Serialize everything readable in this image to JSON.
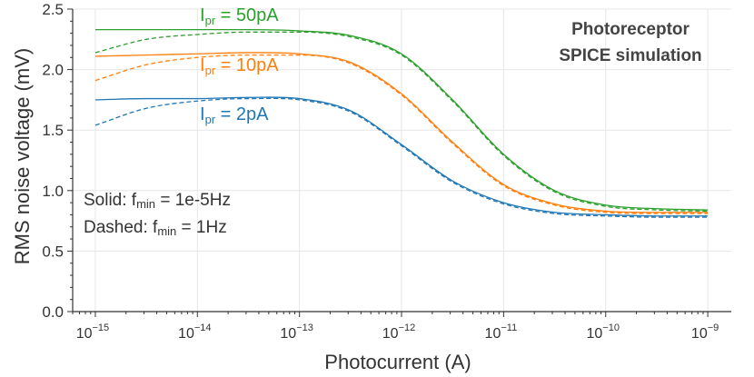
{
  "chart_data": {
    "type": "line",
    "title": "",
    "xlabel": "Photocurrent (A)",
    "ylabel": "RMS noise voltage (mV)",
    "xscale": "log",
    "xlim": [
      6e-16,
      1.7e-09
    ],
    "ylim": [
      0.0,
      2.5
    ],
    "grid": true,
    "x_ticks": [
      {
        "base": "10",
        "exp": "−15",
        "value": 1e-15
      },
      {
        "base": "10",
        "exp": "−14",
        "value": 1e-14
      },
      {
        "base": "10",
        "exp": "−13",
        "value": 1e-13
      },
      {
        "base": "10",
        "exp": "−12",
        "value": 1e-12
      },
      {
        "base": "10",
        "exp": "−11",
        "value": 1e-11
      },
      {
        "base": "10",
        "exp": "−10",
        "value": 1e-10
      },
      {
        "base": "10",
        "exp": "−9",
        "value": 1e-09
      }
    ],
    "y_ticks": [
      "0.0",
      "0.5",
      "1.0",
      "1.5",
      "2.0",
      "2.5"
    ],
    "x": [
      1e-15,
      3.16e-15,
      1e-14,
      3.16e-14,
      1e-13,
      3.16e-13,
      1e-12,
      3.16e-12,
      1e-11,
      3.16e-11,
      1e-10,
      3.16e-10,
      1e-09
    ],
    "series": [
      {
        "name": "Ipr = 50pA, fmin = 1e-5Hz",
        "color": "#2ca02c",
        "style": "solid",
        "values": [
          2.33,
          2.33,
          2.33,
          2.33,
          2.32,
          2.28,
          2.13,
          1.75,
          1.3,
          1.0,
          0.88,
          0.85,
          0.84
        ]
      },
      {
        "name": "Ipr = 50pA, fmin = 1Hz",
        "color": "#2ca02c",
        "style": "dashed",
        "values": [
          2.14,
          2.25,
          2.29,
          2.31,
          2.31,
          2.27,
          2.12,
          1.74,
          1.29,
          0.99,
          0.87,
          0.84,
          0.83
        ]
      },
      {
        "name": "Ipr = 10pA, fmin = 1e-5Hz",
        "color": "#ff7f0e",
        "style": "solid",
        "values": [
          2.11,
          2.12,
          2.13,
          2.14,
          2.13,
          2.06,
          1.8,
          1.4,
          1.05,
          0.89,
          0.83,
          0.82,
          0.82
        ]
      },
      {
        "name": "Ipr = 10pA, fmin = 1Hz",
        "color": "#ff7f0e",
        "style": "dashed",
        "values": [
          1.91,
          2.04,
          2.1,
          2.12,
          2.12,
          2.05,
          1.79,
          1.39,
          1.04,
          0.88,
          0.82,
          0.81,
          0.81
        ]
      },
      {
        "name": "Ipr = 2pA, fmin = 1e-5Hz",
        "color": "#1f77b4",
        "style": "solid",
        "values": [
          1.75,
          1.76,
          1.76,
          1.77,
          1.76,
          1.66,
          1.38,
          1.08,
          0.9,
          0.82,
          0.8,
          0.79,
          0.79
        ]
      },
      {
        "name": "Ipr = 2pA, fmin = 1Hz",
        "color": "#1f77b4",
        "style": "dashed",
        "values": [
          1.54,
          1.68,
          1.74,
          1.76,
          1.75,
          1.65,
          1.37,
          1.07,
          0.89,
          0.81,
          0.79,
          0.78,
          0.78
        ]
      }
    ],
    "annotations": {
      "title_line1": "Photoreceptor",
      "title_line2": "SPICE simulation",
      "label_50": {
        "I": "I",
        "sub": "pr",
        "rest": " = 50pA",
        "color": "#2ca02c"
      },
      "label_10": {
        "I": "I",
        "sub": "pr",
        "rest": " = 10pA",
        "color": "#ff7f0e"
      },
      "label_2": {
        "I": "I",
        "sub": "pr",
        "rest": " = 2pA",
        "color": "#1f77b4"
      },
      "solid_note": {
        "pre": "Solid: f",
        "sub": "min",
        "rest": " = 1e-5Hz"
      },
      "dashed_note": {
        "pre": "Dashed: f",
        "sub": "min",
        "rest": " = 1Hz"
      }
    }
  }
}
